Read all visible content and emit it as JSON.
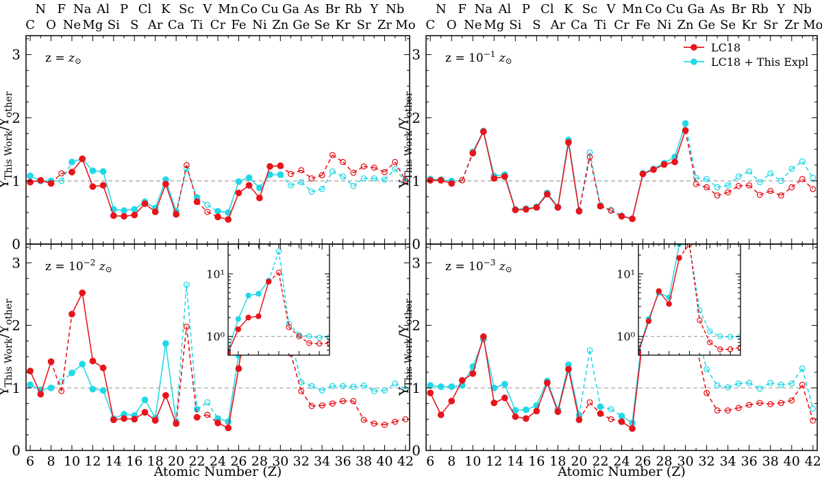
{
  "figure": {
    "xlabel": "Atomic Number (Z)",
    "ylabel_main": "Y",
    "ylabel_sub": "This Work",
    "ylabel_mid": "/Y",
    "ylabel_sub2": "other",
    "legend": [
      "LC18",
      "LC18 + This Expl"
    ],
    "x_ticks": [
      6,
      8,
      10,
      12,
      14,
      16,
      18,
      20,
      22,
      24,
      26,
      28,
      30,
      32,
      34,
      36,
      38,
      40,
      42
    ],
    "y_ticks_top": [
      "0",
      "1",
      "2",
      "3"
    ],
    "y_ticks_bottom": [
      "0",
      "1",
      "2",
      "3"
    ],
    "elements_top_row": [
      {
        "z": 7,
        "sym": "N"
      },
      {
        "z": 9,
        "sym": "F"
      },
      {
        "z": 11,
        "sym": "Na"
      },
      {
        "z": 13,
        "sym": "Al"
      },
      {
        "z": 15,
        "sym": "P"
      },
      {
        "z": 17,
        "sym": "Cl"
      },
      {
        "z": 19,
        "sym": "K"
      },
      {
        "z": 21,
        "sym": "Sc"
      },
      {
        "z": 23,
        "sym": "V"
      },
      {
        "z": 25,
        "sym": "Mn"
      },
      {
        "z": 27,
        "sym": "Co"
      },
      {
        "z": 29,
        "sym": "Cu"
      },
      {
        "z": 31,
        "sym": "Ga"
      },
      {
        "z": 33,
        "sym": "As"
      },
      {
        "z": 35,
        "sym": "Br"
      },
      {
        "z": 37,
        "sym": "Rb"
      },
      {
        "z": 39,
        "sym": "Y"
      },
      {
        "z": 41,
        "sym": "Nb"
      }
    ],
    "elements_bottom_row": [
      {
        "z": 6,
        "sym": "C"
      },
      {
        "z": 8,
        "sym": "O"
      },
      {
        "z": 10,
        "sym": "Ne"
      },
      {
        "z": 12,
        "sym": "Mg"
      },
      {
        "z": 14,
        "sym": "Si"
      },
      {
        "z": 16,
        "sym": "S"
      },
      {
        "z": 18,
        "sym": "Ar"
      },
      {
        "z": 20,
        "sym": "Ca"
      },
      {
        "z": 22,
        "sym": "Ti"
      },
      {
        "z": 24,
        "sym": "Cr"
      },
      {
        "z": 26,
        "sym": "Fe"
      },
      {
        "z": 28,
        "sym": "Ni"
      },
      {
        "z": 30,
        "sym": "Zn"
      },
      {
        "z": 32,
        "sym": "Ge"
      },
      {
        "z": 34,
        "sym": "Se"
      },
      {
        "z": 36,
        "sym": "Kr"
      },
      {
        "z": 38,
        "sym": "Sr"
      },
      {
        "z": 40,
        "sym": "Zr"
      },
      {
        "z": 42,
        "sym": "Mo"
      }
    ],
    "colors": {
      "lc18": "#e8141b",
      "expl": "#22d8e6",
      "reference": "#a0a0a0"
    }
  },
  "chart_data": [
    {
      "type": "line",
      "panel": "top-left",
      "annotation": "z = z⊙",
      "xlim": [
        5.6,
        42.4
      ],
      "ylim": [
        0,
        3.3
      ],
      "reference_line": 1,
      "x": [
        6,
        7,
        8,
        9,
        10,
        11,
        12,
        13,
        14,
        15,
        16,
        17,
        18,
        19,
        20,
        21,
        22,
        23,
        24,
        25,
        26,
        27,
        28,
        29,
        30,
        31,
        32,
        33,
        34,
        35,
        36,
        37,
        38,
        39,
        40,
        41,
        42
      ],
      "series": [
        {
          "name": "LC18",
          "values": [
            0.98,
            1.01,
            0.96,
            1.12,
            1.14,
            1.35,
            0.91,
            0.93,
            0.45,
            0.44,
            0.46,
            0.64,
            0.51,
            0.95,
            0.47,
            1.25,
            0.67,
            0.51,
            0.43,
            0.39,
            0.81,
            0.93,
            0.73,
            1.23,
            1.24,
            1.11,
            1.17,
            1.04,
            1.09,
            1.41,
            1.3,
            1.13,
            1.23,
            1.21,
            1.14,
            1.3,
            1.01
          ],
          "filled": [
            true,
            true,
            true,
            false,
            true,
            true,
            true,
            true,
            true,
            true,
            true,
            true,
            true,
            true,
            true,
            false,
            true,
            false,
            true,
            true,
            true,
            true,
            true,
            true,
            true,
            false,
            false,
            false,
            false,
            false,
            false,
            false,
            false,
            false,
            false,
            false,
            false
          ]
        },
        {
          "name": "LC18 + This Expl",
          "values": [
            1.08,
            1.0,
            1.0,
            1.0,
            1.3,
            1.35,
            1.16,
            1.15,
            0.55,
            0.53,
            0.55,
            0.67,
            0.57,
            1.02,
            0.52,
            1.19,
            0.74,
            0.62,
            0.52,
            0.5,
            0.99,
            1.05,
            0.89,
            1.1,
            1.1,
            0.93,
            0.98,
            0.83,
            0.87,
            1.15,
            1.07,
            0.92,
            1.04,
            1.04,
            1.02,
            1.19,
            0.99
          ],
          "filled": [
            true,
            true,
            true,
            false,
            true,
            true,
            true,
            true,
            true,
            true,
            true,
            true,
            true,
            true,
            true,
            false,
            true,
            false,
            true,
            true,
            true,
            true,
            true,
            true,
            true,
            false,
            false,
            false,
            false,
            false,
            false,
            false,
            false,
            false,
            false,
            false,
            false
          ]
        }
      ]
    },
    {
      "type": "line",
      "panel": "top-right",
      "annotation": "z = 10⁻¹ z⊙",
      "xlim": [
        5.6,
        42.4
      ],
      "ylim": [
        0,
        3.3
      ],
      "reference_line": 1,
      "x": [
        6,
        7,
        8,
        9,
        10,
        11,
        12,
        13,
        14,
        15,
        16,
        17,
        18,
        19,
        20,
        21,
        22,
        23,
        24,
        25,
        26,
        27,
        28,
        29,
        30,
        31,
        32,
        33,
        34,
        35,
        36,
        37,
        38,
        39,
        40,
        41,
        42
      ],
      "series": [
        {
          "name": "LC18",
          "values": [
            1.01,
            1.01,
            0.96,
            1.01,
            1.44,
            1.78,
            1.04,
            1.07,
            0.54,
            0.55,
            0.58,
            0.79,
            0.58,
            1.61,
            0.52,
            1.38,
            0.6,
            0.53,
            0.44,
            0.4,
            1.11,
            1.18,
            1.26,
            1.3,
            1.8,
            0.95,
            0.9,
            0.77,
            0.82,
            0.92,
            0.93,
            0.78,
            0.84,
            0.77,
            0.9,
            1.03,
            0.87
          ],
          "filled": [
            true,
            true,
            true,
            false,
            true,
            true,
            true,
            true,
            true,
            true,
            true,
            true,
            true,
            true,
            true,
            false,
            true,
            false,
            true,
            true,
            true,
            true,
            true,
            true,
            true,
            false,
            false,
            false,
            false,
            false,
            false,
            false,
            false,
            false,
            false,
            false,
            false
          ]
        },
        {
          "name": "LC18 + This Expl",
          "values": [
            1.03,
            1.02,
            1.0,
            1.01,
            1.46,
            1.79,
            1.08,
            1.1,
            0.55,
            0.56,
            0.59,
            0.81,
            0.59,
            1.65,
            0.53,
            1.45,
            0.61,
            0.54,
            0.45,
            0.4,
            1.12,
            1.19,
            1.28,
            1.38,
            1.91,
            1.05,
            1.03,
            0.9,
            0.93,
            1.07,
            1.15,
            0.98,
            1.12,
            1.0,
            1.19,
            1.31,
            1.05
          ],
          "filled": [
            true,
            true,
            true,
            false,
            true,
            true,
            true,
            true,
            true,
            true,
            true,
            true,
            true,
            true,
            true,
            false,
            true,
            false,
            true,
            true,
            true,
            true,
            true,
            true,
            true,
            false,
            false,
            false,
            false,
            false,
            false,
            false,
            false,
            false,
            false,
            false,
            false
          ]
        }
      ]
    },
    {
      "type": "line",
      "panel": "bottom-left",
      "annotation": "z = 10⁻² z⊙",
      "xlim": [
        5.6,
        42.4
      ],
      "ylim": [
        0,
        3.3
      ],
      "reference_line": 1,
      "x": [
        6,
        7,
        8,
        9,
        10,
        11,
        12,
        13,
        14,
        15,
        16,
        17,
        18,
        19,
        20,
        21,
        22,
        23,
        24,
        25,
        26,
        27,
        28,
        29,
        30,
        31,
        32,
        33,
        34,
        35,
        36,
        37,
        38,
        39,
        40,
        41,
        42
      ],
      "series": [
        {
          "name": "LC18",
          "values": [
            1.27,
            0.9,
            1.42,
            0.95,
            2.18,
            2.52,
            1.43,
            1.32,
            0.49,
            0.51,
            0.5,
            0.61,
            0.48,
            0.88,
            0.43,
            1.98,
            0.53,
            0.57,
            0.44,
            0.36,
            1.31,
            2.5,
            2.6,
            2.8,
            3.2,
            1.55,
            0.95,
            0.71,
            0.72,
            0.75,
            0.79,
            0.79,
            0.49,
            0.43,
            0.41,
            0.46,
            0.5
          ],
          "filled": [
            true,
            true,
            true,
            false,
            true,
            true,
            true,
            true,
            true,
            true,
            true,
            true,
            true,
            true,
            true,
            false,
            true,
            false,
            true,
            true,
            true,
            true,
            true,
            true,
            true,
            false,
            false,
            false,
            false,
            false,
            false,
            false,
            false,
            false,
            false,
            false,
            false
          ]
        },
        {
          "name": "LC18 + This Expl",
          "values": [
            1.05,
            0.97,
            1.0,
            1.1,
            1.24,
            1.38,
            0.98,
            0.96,
            0.51,
            0.58,
            0.56,
            0.81,
            0.52,
            1.71,
            0.46,
            2.65,
            0.66,
            0.77,
            0.51,
            0.46,
            1.52,
            2.6,
            2.7,
            2.9,
            3.3,
            1.8,
            1.09,
            1.03,
            0.96,
            1.03,
            1.03,
            1.02,
            1.04,
            0.95,
            0.96,
            1.07,
            0.98
          ],
          "filled": [
            true,
            true,
            true,
            false,
            true,
            true,
            true,
            true,
            true,
            true,
            true,
            true,
            true,
            true,
            true,
            false,
            true,
            false,
            true,
            true,
            true,
            true,
            true,
            true,
            true,
            false,
            false,
            false,
            false,
            false,
            false,
            false,
            false,
            false,
            false,
            false,
            false
          ]
        }
      ],
      "inset": {
        "yscale": "log",
        "xlim": [
          25,
          35
        ],
        "ylim": [
          0.5,
          30
        ],
        "reference_line": 1,
        "y_tick_labels": [
          "10⁰",
          "10¹"
        ],
        "x": [
          25,
          26,
          27,
          28,
          29,
          30,
          31,
          32,
          33,
          34,
          35
        ],
        "lc18": [
          0.55,
          1.3,
          2.0,
          2.1,
          7.5,
          10.5,
          1.4,
          1.0,
          0.78,
          0.76,
          0.78
        ],
        "expl": [
          0.6,
          1.9,
          4.5,
          4.8,
          7.8,
          23.0,
          1.6,
          1.05,
          1.0,
          0.95,
          0.97
        ],
        "filled": [
          true,
          true,
          true,
          true,
          true,
          false,
          false,
          false,
          false,
          false,
          false
        ]
      }
    },
    {
      "type": "line",
      "panel": "bottom-right",
      "annotation": "z = 10⁻³ z⊙",
      "xlim": [
        5.6,
        42.4
      ],
      "ylim": [
        0,
        3.3
      ],
      "reference_line": 1,
      "x": [
        6,
        7,
        8,
        9,
        10,
        11,
        12,
        13,
        14,
        15,
        16,
        17,
        18,
        19,
        20,
        21,
        22,
        23,
        24,
        25,
        26,
        27,
        28,
        29,
        30,
        31,
        32,
        33,
        34,
        35,
        36,
        37,
        38,
        39,
        40,
        41,
        42
      ],
      "series": [
        {
          "name": "LC18",
          "values": [
            0.92,
            0.57,
            0.79,
            1.12,
            1.23,
            1.82,
            0.76,
            0.84,
            0.54,
            0.51,
            0.63,
            1.08,
            0.62,
            1.3,
            0.49,
            0.77,
            0.59,
            0.5,
            0.46,
            0.35,
            1.8,
            2.6,
            2.3,
            2.9,
            3.3,
            1.7,
            0.92,
            0.64,
            0.64,
            0.68,
            0.73,
            0.76,
            0.74,
            0.76,
            0.8,
            1.05,
            0.48
          ],
          "filled": [
            true,
            true,
            true,
            true,
            true,
            true,
            true,
            true,
            true,
            true,
            true,
            true,
            true,
            true,
            true,
            false,
            true,
            false,
            true,
            true,
            true,
            true,
            true,
            true,
            true,
            false,
            false,
            false,
            false,
            false,
            false,
            false,
            false,
            false,
            false,
            false,
            false
          ]
        },
        {
          "name": "LC18 + This Expl",
          "values": [
            1.04,
            1.02,
            1.02,
            1.04,
            1.34,
            1.78,
            1.0,
            1.06,
            0.64,
            0.65,
            0.72,
            1.11,
            0.65,
            1.37,
            0.56,
            1.6,
            0.7,
            0.66,
            0.55,
            0.44,
            1.9,
            2.7,
            2.5,
            3.1,
            3.3,
            1.95,
            1.3,
            1.04,
            1.01,
            1.07,
            1.08,
            0.99,
            1.08,
            1.05,
            1.07,
            1.31,
            0.67
          ],
          "filled": [
            true,
            true,
            true,
            true,
            true,
            true,
            true,
            true,
            true,
            true,
            true,
            true,
            true,
            true,
            true,
            false,
            true,
            false,
            true,
            true,
            true,
            true,
            true,
            true,
            true,
            false,
            false,
            false,
            false,
            false,
            false,
            false,
            false,
            false,
            false,
            false,
            false
          ]
        }
      ],
      "inset": {
        "yscale": "log",
        "xlim": [
          25,
          35
        ],
        "ylim": [
          0.5,
          30
        ],
        "reference_line": 1,
        "y_tick_labels": [
          "10⁰",
          "10¹"
        ],
        "x": [
          25,
          26,
          27,
          28,
          29,
          30,
          31,
          32,
          33,
          34,
          35
        ],
        "lc18": [
          0.55,
          1.75,
          5.3,
          3.3,
          18.0,
          30.0,
          1.8,
          0.8,
          0.62,
          0.62,
          0.66
        ],
        "expl": [
          0.6,
          1.9,
          5.0,
          4.2,
          30.0,
          30.0,
          2.6,
          1.2,
          1.0,
          0.98,
          1.0
        ],
        "filled": [
          true,
          true,
          true,
          true,
          true,
          false,
          false,
          false,
          false,
          false,
          false
        ]
      }
    }
  ]
}
